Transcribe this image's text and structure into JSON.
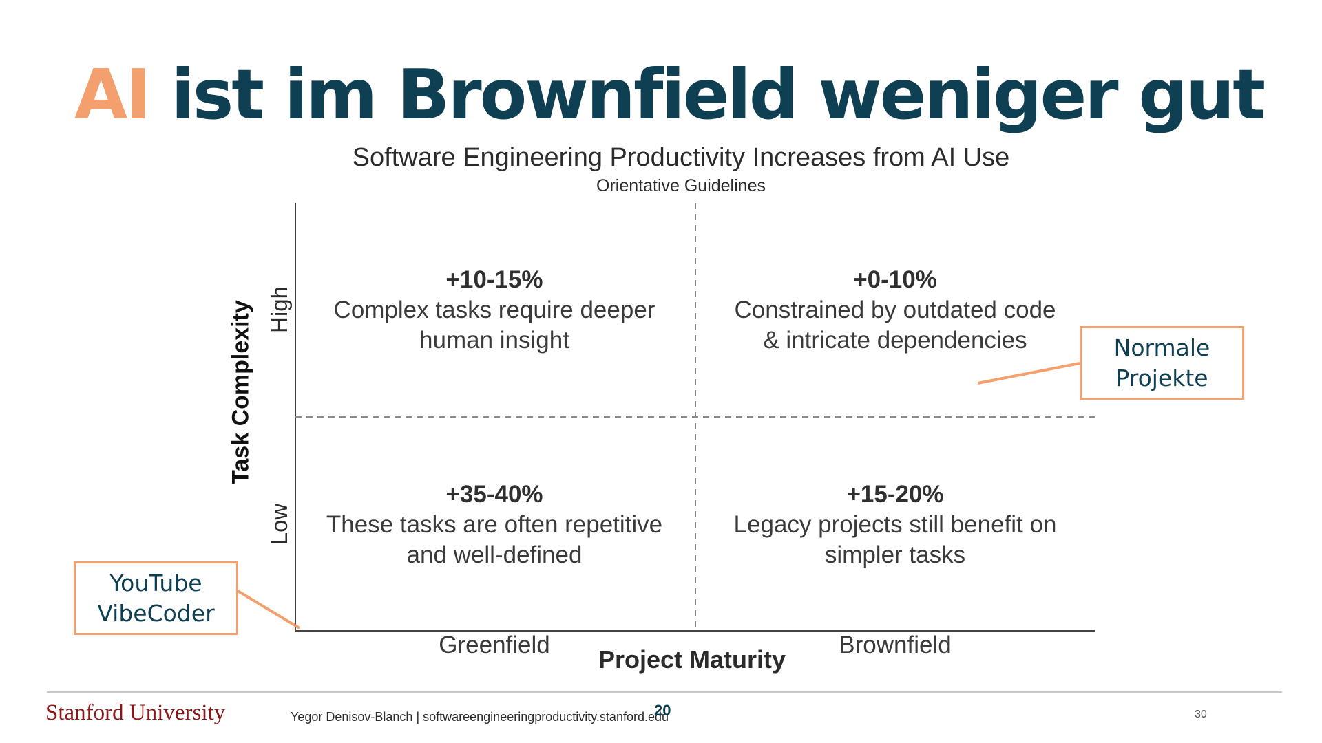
{
  "slide": {
    "title_accent": "AI",
    "title_rest": " ist im Brownfield weniger gut",
    "number": "20",
    "source_page": "30"
  },
  "chart": {
    "title": "Software Engineering Productivity Increases from AI Use",
    "subtitle": "Orientative Guidelines",
    "y_axis_label": "Task Complexity",
    "y_ticks": [
      "High",
      "Low"
    ],
    "x_axis_label": "Project Maturity",
    "x_ticks": [
      "Greenfield",
      "Brownfield"
    ],
    "quadrants": {
      "high_greenfield": {
        "value": "+10-15%",
        "line1": "Complex tasks require deeper",
        "line2": "human insight"
      },
      "high_brownfield": {
        "value": "+0-10%",
        "line1": "Constrained by outdated code",
        "line2": "& intricate dependencies"
      },
      "low_greenfield": {
        "value": "+35-40%",
        "line1": "These tasks are often repetitive",
        "line2": "and well-defined"
      },
      "low_brownfield": {
        "value": "+15-20%",
        "line1": "Legacy projects still benefit on",
        "line2": "simpler tasks"
      }
    }
  },
  "callouts": {
    "normal": {
      "line1": "Normale",
      "line2": "Projekte"
    },
    "youtube": {
      "line1": "YouTube",
      "line2": "VibeCoder"
    }
  },
  "footer": {
    "university": "Stanford University",
    "credit": "Yegor Denisov-Blanch | softwareengineeringproductivity.stanford.edu"
  },
  "colors": {
    "accent": "#f3a06e",
    "title": "#0f3f52",
    "stanford_red": "#8c1515"
  }
}
